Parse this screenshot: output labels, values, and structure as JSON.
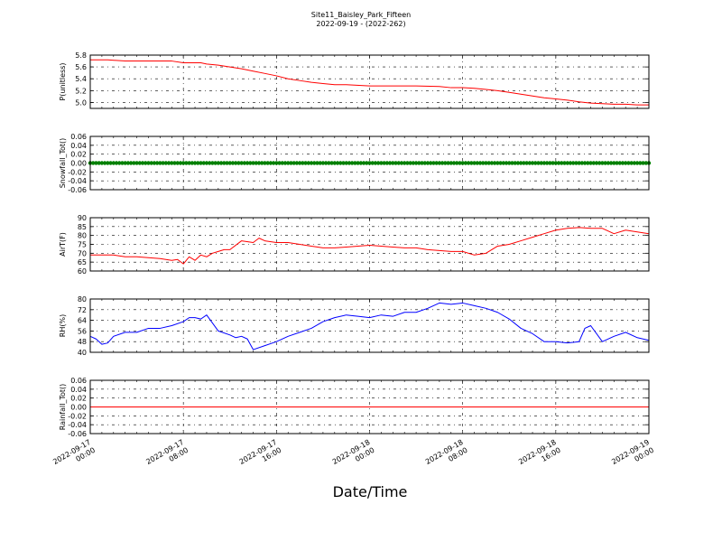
{
  "figure": {
    "title": "Site11_Baisley_Park_Fifteen",
    "subtitle": "2022-09-19 - (2022-262)",
    "xlabel": "Date/Time",
    "x_ticks": [
      "2022-09-17\n00:00",
      "2022-09-17\n08:00",
      "2022-09-17\n16:00",
      "2022-09-18\n00:00",
      "2022-09-18\n08:00",
      "2022-09-18\n16:00",
      "2022-09-19\n00:00"
    ]
  },
  "chart_data": [
    {
      "type": "line",
      "ylabel": "P(unitless)",
      "ylim": [
        4.9,
        5.8
      ],
      "y_ticks": [
        "5.8",
        "5.6",
        "5.4",
        "5.2",
        "5.0"
      ],
      "color": "#ff0000",
      "grid": true,
      "x": [
        0,
        1.5,
        3,
        4.5,
        7,
        8,
        9.5,
        10,
        11,
        12,
        13,
        14,
        15,
        16,
        17,
        18,
        19,
        20,
        21,
        22,
        24,
        26,
        27,
        28,
        30,
        31,
        32,
        33,
        34,
        35,
        36,
        37,
        38,
        39,
        40,
        41,
        42,
        43,
        44,
        45,
        46,
        47,
        48
      ],
      "values": [
        5.72,
        5.72,
        5.7,
        5.7,
        5.7,
        5.67,
        5.67,
        5.65,
        5.63,
        5.6,
        5.57,
        5.53,
        5.49,
        5.45,
        5.4,
        5.37,
        5.34,
        5.32,
        5.3,
        5.3,
        5.28,
        5.28,
        5.28,
        5.28,
        5.27,
        5.25,
        5.25,
        5.24,
        5.22,
        5.2,
        5.17,
        5.14,
        5.11,
        5.08,
        5.06,
        5.04,
        5.01,
        4.99,
        4.98,
        4.97,
        4.97,
        4.96,
        4.96
      ]
    },
    {
      "type": "scatter",
      "ylabel": "Snowfall_Tot()",
      "ylim": [
        -0.06,
        0.06
      ],
      "y_ticks": [
        "0.06",
        "0.04",
        "0.02",
        "0.00",
        "-0.02",
        "-0.04",
        "-0.06"
      ],
      "color": "#008000",
      "grid": true,
      "x_start": 0,
      "x_end": 48,
      "x_step": 0.25,
      "value_constant": 0.0
    },
    {
      "type": "line",
      "ylabel": "AirT(F)",
      "ylim": [
        60,
        90
      ],
      "y_ticks": [
        "90",
        "85",
        "80",
        "75",
        "70",
        "65",
        "60"
      ],
      "color": "#ff0000",
      "grid": true,
      "x": [
        0,
        1,
        2,
        3,
        4,
        5,
        6,
        7,
        7.5,
        8,
        8.5,
        9,
        9.5,
        10,
        10.5,
        11,
        11.5,
        12,
        13,
        14,
        14.5,
        15,
        16,
        17,
        18,
        19,
        20,
        21,
        22,
        23,
        24,
        25,
        26,
        27,
        28,
        29,
        30,
        31,
        32,
        33,
        34,
        35,
        36,
        37,
        38,
        39,
        40,
        41,
        42,
        43,
        44,
        45,
        46,
        47,
        48
      ],
      "values": [
        69,
        69,
        69,
        68,
        68,
        67.5,
        67,
        66,
        66.5,
        64,
        68,
        66,
        69,
        68,
        70,
        71,
        72,
        72,
        77,
        76,
        78.5,
        77,
        76,
        76,
        75,
        74,
        73,
        73,
        73.5,
        74,
        74.5,
        74,
        73.5,
        73,
        73,
        72,
        71.5,
        71,
        71,
        69,
        70,
        74,
        75,
        77,
        79,
        81,
        83,
        84,
        84.5,
        84,
        84,
        81,
        83,
        82,
        81
      ]
    },
    {
      "type": "line",
      "ylabel": "RH(%)",
      "ylim": [
        40,
        80
      ],
      "y_ticks": [
        "80",
        "72",
        "64",
        "56",
        "48",
        "40"
      ],
      "color": "#0000ff",
      "grid": true,
      "x": [
        0,
        0.5,
        1,
        1.5,
        2,
        3,
        4,
        5,
        6,
        7,
        8,
        8.5,
        9,
        9.5,
        10,
        11,
        12,
        12.5,
        13,
        13.5,
        14,
        15,
        16,
        17,
        18,
        19,
        20,
        21,
        22,
        23,
        24,
        25,
        26,
        27,
        28,
        29,
        30,
        31,
        32,
        33,
        34,
        35,
        36,
        37,
        38,
        39,
        40,
        41,
        42,
        42.5,
        43,
        44,
        45,
        46,
        47,
        48
      ],
      "values": [
        52,
        50,
        46,
        47,
        52,
        55,
        55,
        58,
        58,
        60,
        63,
        66,
        66,
        65,
        68,
        56,
        53,
        51,
        52,
        50,
        42,
        45,
        48,
        52,
        55,
        58,
        63,
        66,
        68,
        67,
        66,
        68,
        67,
        70,
        70,
        73,
        77,
        76,
        77,
        75,
        73,
        70,
        65,
        58,
        54,
        48,
        48,
        47,
        48,
        58,
        60,
        48,
        52,
        55,
        51,
        49
      ]
    },
    {
      "type": "line",
      "ylabel": "Rainfall_Tot()",
      "ylim": [
        -0.06,
        0.06
      ],
      "y_ticks": [
        "0.06",
        "0.04",
        "0.02",
        "0.00",
        "-0.02",
        "-0.04",
        "-0.06"
      ],
      "color": "#ff0000",
      "grid": true,
      "x": [
        0,
        48
      ],
      "values": [
        0.0,
        0.0
      ]
    }
  ]
}
